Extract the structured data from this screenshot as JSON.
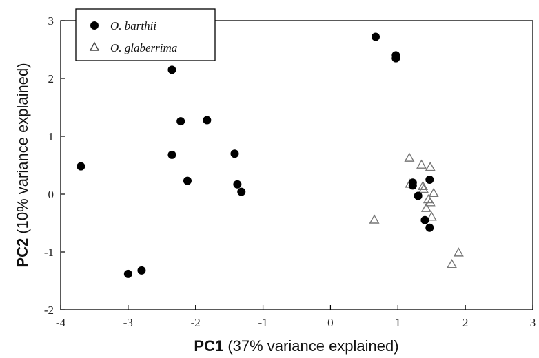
{
  "chart_data": {
    "type": "scatter",
    "xlabel_bold": "PC1",
    "xlabel_rest": "(37% variance explained)",
    "ylabel_bold": "PC2",
    "ylabel_rest": "(10% variance explained)",
    "xlim": [
      -4,
      3
    ],
    "ylim": [
      -2,
      3
    ],
    "xticks": [
      "-4",
      "-3",
      "-2",
      "-1",
      "0",
      "1",
      "2",
      "3"
    ],
    "yticks": [
      "-2",
      "-1",
      "0",
      "1",
      "2",
      "3"
    ],
    "legend_position": "top-left",
    "series": [
      {
        "name": "O. barthii",
        "marker": "filled-circle",
        "color": "#000000",
        "points": [
          [
            -3.7,
            0.48
          ],
          [
            -3.0,
            -1.38
          ],
          [
            -2.8,
            -1.32
          ],
          [
            -2.35,
            2.15
          ],
          [
            -2.35,
            0.68
          ],
          [
            -2.22,
            1.26
          ],
          [
            -2.12,
            0.23
          ],
          [
            -1.83,
            1.28
          ],
          [
            -1.42,
            0.7
          ],
          [
            -1.38,
            0.17
          ],
          [
            -1.32,
            0.04
          ],
          [
            0.67,
            2.72
          ],
          [
            0.97,
            2.4
          ],
          [
            0.97,
            2.35
          ],
          [
            1.22,
            0.2
          ],
          [
            1.22,
            0.15
          ],
          [
            1.3,
            -0.03
          ],
          [
            1.4,
            -0.45
          ],
          [
            1.47,
            0.25
          ],
          [
            1.47,
            -0.58
          ]
        ]
      },
      {
        "name": "O. glaberrima",
        "marker": "open-triangle",
        "color": "#777777",
        "points": [
          [
            0.65,
            -0.45
          ],
          [
            1.17,
            0.62
          ],
          [
            1.18,
            0.17
          ],
          [
            1.35,
            0.5
          ],
          [
            1.37,
            0.13
          ],
          [
            1.38,
            0.08
          ],
          [
            1.42,
            -0.25
          ],
          [
            1.45,
            -0.1
          ],
          [
            1.48,
            0.46
          ],
          [
            1.48,
            -0.15
          ],
          [
            1.5,
            -0.4
          ],
          [
            1.53,
            0.01
          ],
          [
            1.8,
            -1.22
          ],
          [
            1.9,
            -1.02
          ]
        ]
      }
    ]
  }
}
